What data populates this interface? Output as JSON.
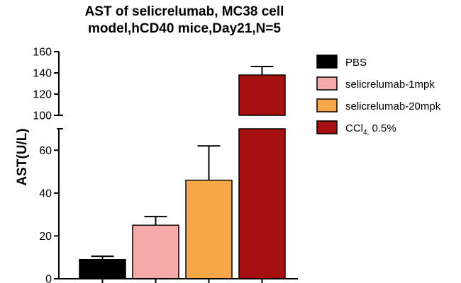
{
  "chart_data": {
    "type": "bar",
    "title_lines": [
      "AST of selicrelumab, MC38 cell",
      "model,hCD40 mice,Day21,N=5"
    ],
    "ylabel": "AST(U/L)",
    "xlabel": "",
    "y_axis_break": {
      "lower_range": [
        0,
        70
      ],
      "upper_range": [
        100,
        160
      ]
    },
    "lower_ticks": [
      0,
      20,
      40,
      60
    ],
    "upper_ticks": [
      100,
      120,
      140,
      160
    ],
    "grid": false,
    "legend_position": "right",
    "categories": [
      "PBS",
      "selicrelumab-1mpk",
      "selicrelumab-20mpk",
      "CCl4, 0.5%"
    ],
    "values": [
      9,
      25,
      46,
      138
    ],
    "errors": [
      1.5,
      4,
      16,
      8
    ],
    "colors": [
      "#000000",
      "#f6a9a9",
      "#f8a746",
      "#a50f0f"
    ]
  },
  "legend": [
    {
      "label": "PBS",
      "color": "#000000"
    },
    {
      "label": "selicrelumab-1mpk",
      "color": "#f6a9a9"
    },
    {
      "label": "selicrelumab-20mpk",
      "color": "#f8a746"
    },
    {
      "label": "CCl",
      "sub": "4,",
      "tail": " 0.5%",
      "color": "#a50f0f"
    }
  ]
}
